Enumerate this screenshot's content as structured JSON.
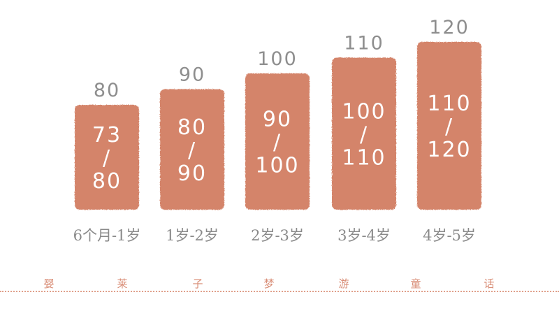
{
  "colors": {
    "bar": "#d4846a",
    "value_text": "#8e8e8e",
    "inner_text": "#ffffff",
    "category_text": "#8a8a8a",
    "footer_text": "#d88b74"
  },
  "chart_data": {
    "type": "bar",
    "categories": [
      "6个月-1岁",
      "1岁-2岁",
      "2岁-3岁",
      "3岁-4岁",
      "4岁-5岁"
    ],
    "values": [
      80,
      90,
      100,
      110,
      120
    ],
    "value_labels": [
      "80",
      "90",
      "100",
      "110",
      "120"
    ],
    "bar_labels": [
      [
        "73",
        "/",
        "80"
      ],
      [
        "80",
        "/",
        "90"
      ],
      [
        "90",
        "/",
        "100"
      ],
      [
        "100",
        "/",
        "110"
      ],
      [
        "110",
        "/",
        "120"
      ]
    ],
    "title": "",
    "xlabel": "",
    "ylabel": "",
    "grid": false,
    "legend": "none"
  },
  "footer": {
    "chars": [
      "婴",
      "莱",
      "子",
      "梦",
      "游",
      "童",
      "话"
    ]
  }
}
